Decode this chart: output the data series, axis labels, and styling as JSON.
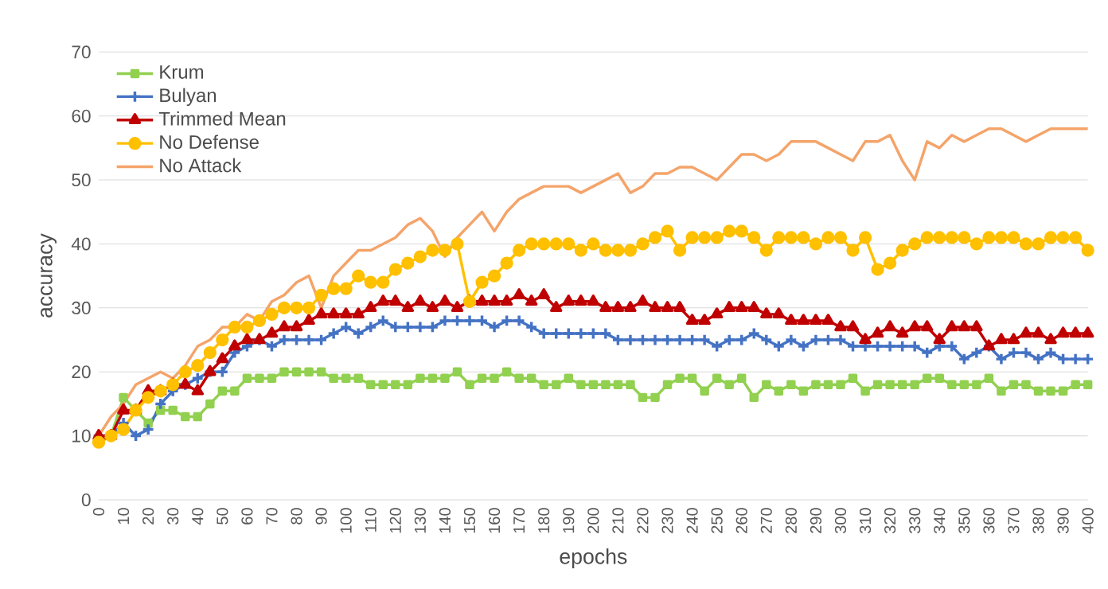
{
  "chart_data": {
    "type": "line",
    "xlabel": "epochs",
    "ylabel": "accuracy",
    "x": [
      0,
      5,
      10,
      15,
      20,
      25,
      30,
      35,
      40,
      45,
      50,
      55,
      60,
      65,
      70,
      75,
      80,
      85,
      90,
      95,
      100,
      105,
      110,
      115,
      120,
      125,
      130,
      135,
      140,
      145,
      150,
      155,
      160,
      165,
      170,
      175,
      180,
      185,
      190,
      195,
      200,
      205,
      210,
      215,
      220,
      225,
      230,
      235,
      240,
      245,
      250,
      255,
      260,
      265,
      270,
      275,
      280,
      285,
      290,
      295,
      300,
      305,
      310,
      315,
      320,
      325,
      330,
      335,
      340,
      345,
      350,
      355,
      360,
      365,
      370,
      375,
      380,
      385,
      390,
      395,
      400
    ],
    "xlim": [
      0,
      400
    ],
    "xticks": [
      0,
      10,
      20,
      30,
      40,
      50,
      60,
      70,
      80,
      90,
      100,
      110,
      120,
      130,
      140,
      150,
      160,
      170,
      180,
      190,
      200,
      210,
      220,
      230,
      240,
      250,
      260,
      270,
      280,
      290,
      300,
      310,
      320,
      330,
      340,
      350,
      360,
      370,
      380,
      390,
      400
    ],
    "ylim": [
      0,
      70
    ],
    "yticks": [
      0,
      10,
      20,
      30,
      40,
      50,
      60,
      70
    ],
    "grid": "y",
    "legend": "top left",
    "line_style": "solid",
    "series": [
      {
        "name": "Krum",
        "color": "#92d050",
        "marker": "square",
        "values": [
          9,
          10,
          16,
          14,
          12,
          14,
          14,
          13,
          13,
          15,
          17,
          17,
          19,
          19,
          19,
          20,
          20,
          20,
          20,
          19,
          19,
          19,
          18,
          18,
          18,
          18,
          19,
          19,
          19,
          20,
          18,
          19,
          19,
          20,
          19,
          19,
          18,
          18,
          19,
          18,
          18,
          18,
          18,
          18,
          16,
          16,
          18,
          19,
          19,
          17,
          19,
          18,
          19,
          16,
          18,
          17,
          18,
          17,
          18,
          18,
          18,
          19,
          17,
          18,
          18,
          18,
          18,
          19,
          19,
          18,
          18,
          18,
          19,
          17,
          18,
          18,
          17,
          17,
          17,
          18,
          18
        ]
      },
      {
        "name": "Bulyan",
        "color": "#4472c4",
        "marker": "cross",
        "values": [
          10,
          10,
          12,
          10,
          11,
          15,
          17,
          18,
          19,
          20,
          20,
          23,
          24,
          25,
          24,
          25,
          25,
          25,
          25,
          26,
          27,
          26,
          27,
          28,
          27,
          27,
          27,
          27,
          28,
          28,
          28,
          28,
          27,
          28,
          28,
          27,
          26,
          26,
          26,
          26,
          26,
          26,
          25,
          25,
          25,
          25,
          25,
          25,
          25,
          25,
          24,
          25,
          25,
          26,
          25,
          24,
          25,
          24,
          25,
          25,
          25,
          24,
          24,
          24,
          24,
          24,
          24,
          23,
          24,
          24,
          22,
          23,
          24,
          22,
          23,
          23,
          22,
          23,
          22,
          22,
          22
        ]
      },
      {
        "name": "Trimmed Mean",
        "color": "#c00000",
        "marker": "triangle",
        "values": [
          10,
          10,
          14,
          14,
          17,
          17,
          18,
          18,
          17,
          20,
          22,
          24,
          25,
          25,
          26,
          27,
          27,
          28,
          29,
          29,
          29,
          29,
          30,
          31,
          31,
          30,
          31,
          30,
          31,
          30,
          31,
          31,
          31,
          31,
          32,
          31,
          32,
          30,
          31,
          31,
          31,
          30,
          30,
          30,
          31,
          30,
          30,
          30,
          28,
          28,
          29,
          30,
          30,
          30,
          29,
          29,
          28,
          28,
          28,
          28,
          27,
          27,
          25,
          26,
          27,
          26,
          27,
          27,
          25,
          27,
          27,
          27,
          24,
          25,
          25,
          26,
          26,
          25,
          26,
          26,
          26
        ]
      },
      {
        "name": "No Defense",
        "color": "#ffc000",
        "marker": "circle",
        "values": [
          9,
          10,
          11,
          14,
          16,
          17,
          18,
          20,
          21,
          23,
          25,
          27,
          27,
          28,
          29,
          30,
          30,
          30,
          32,
          33,
          33,
          35,
          34,
          34,
          36,
          37,
          38,
          39,
          39,
          40,
          31,
          34,
          35,
          37,
          39,
          40,
          40,
          40,
          40,
          39,
          40,
          39,
          39,
          39,
          40,
          41,
          42,
          39,
          41,
          41,
          41,
          42,
          42,
          41,
          39,
          41,
          41,
          41,
          40,
          41,
          41,
          39,
          41,
          36,
          37,
          39,
          40,
          41,
          41,
          41,
          41,
          40,
          41,
          41,
          41,
          40,
          40,
          41,
          41,
          41,
          39
        ]
      },
      {
        "name": "No Attack",
        "color": "#f4a46a",
        "marker": "none",
        "values": [
          10,
          13,
          15,
          18,
          19,
          20,
          19,
          21,
          24,
          25,
          27,
          27,
          29,
          28,
          31,
          32,
          34,
          35,
          30,
          35,
          37,
          39,
          39,
          40,
          41,
          43,
          44,
          42,
          38,
          41,
          43,
          45,
          42,
          45,
          47,
          48,
          49,
          49,
          49,
          48,
          49,
          50,
          51,
          48,
          49,
          51,
          51,
          52,
          52,
          51,
          50,
          52,
          54,
          54,
          53,
          54,
          56,
          56,
          56,
          55,
          54,
          53,
          56,
          56,
          57,
          53,
          50,
          56,
          55,
          57,
          56,
          57,
          58,
          58,
          57,
          56,
          57,
          58,
          58,
          58,
          58
        ]
      }
    ]
  }
}
